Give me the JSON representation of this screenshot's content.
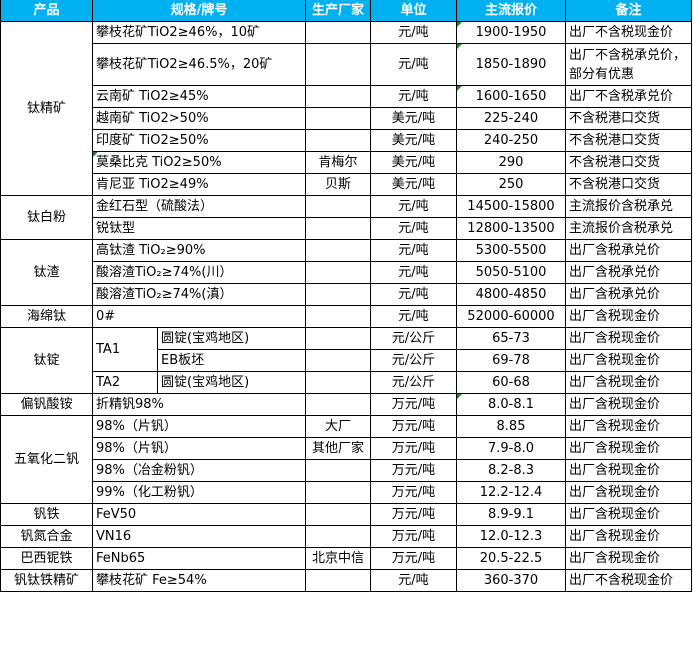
{
  "header": [
    "产品",
    "规格/牌号",
    "生产厂家",
    "单位",
    "主流报价",
    "备注"
  ],
  "accent_color": "#00B0F0",
  "groups": [
    {
      "product": "钛精矿",
      "items": [
        {
          "spec": "攀枝花矿TiO2≥46%，10矿",
          "maker": "",
          "unit": "元/吨",
          "price": "1900-1950",
          "note": "出厂不含税现金价",
          "mark": "price"
        },
        {
          "spec": "攀枝花矿TiO2≥46.5%，20矿",
          "maker": "",
          "unit": "元/吨",
          "price": "1850-1890",
          "note": "出厂不含税承兑价，部分有优惠",
          "mark": "price",
          "tall": true
        },
        {
          "spec": "云南矿 TiO2≥45%",
          "maker": "",
          "unit": "元/吨",
          "price": "1600-1650",
          "note": "出厂不含税承兑价",
          "mark": "price"
        },
        {
          "spec": "越南矿 TiO2>50%",
          "maker": "",
          "unit": "美元/吨",
          "price": "225-240",
          "note": "不含税港口交货"
        },
        {
          "spec": "印度矿 TiO2≥50%",
          "maker": "",
          "unit": "美元/吨",
          "price": "240-250",
          "note": "不含税港口交货"
        },
        {
          "spec": "莫桑比克 TiO2≥50%",
          "maker": "肯梅尔",
          "unit": "美元/吨",
          "price": "290",
          "note": "不含税港口交货",
          "mark": "spec"
        },
        {
          "spec": "肯尼亚 TiO2≥49%",
          "maker": "贝斯",
          "unit": "美元/吨",
          "price": "250",
          "note": "不含税港口交货"
        }
      ]
    },
    {
      "product": "钛白粉",
      "items": [
        {
          "spec": "金红石型（硫酸法）",
          "maker": "",
          "unit": "元/吨",
          "price": "14500-15800",
          "note": "主流报价含税承兑"
        },
        {
          "spec": "锐钛型",
          "maker": "",
          "unit": "元/吨",
          "price": "12800-13500",
          "note": "主流报价含税承兑"
        }
      ]
    },
    {
      "product": "钛渣",
      "items": [
        {
          "spec": "高钛渣 TiO₂≥90%",
          "maker": "",
          "unit": "元/吨",
          "price": "5300-5500",
          "note": "出厂含税承兑价"
        },
        {
          "spec": "酸溶渣TiO₂≥74%(川）",
          "maker": "",
          "unit": "元/吨",
          "price": "5050-5100",
          "note": "出厂含税承兑价"
        },
        {
          "spec": "酸溶渣TiO₂≥74%(滇）",
          "maker": "",
          "unit": "元/吨",
          "price": "4800-4850",
          "note": "出厂含税承兑价"
        }
      ]
    },
    {
      "product": "海绵钛",
      "items": [
        {
          "spec": "0#",
          "maker": "",
          "unit": "元/吨",
          "price": "52000-60000",
          "note": "出厂含税现金价"
        }
      ]
    },
    {
      "product": "钛锭",
      "split": true,
      "items": [
        {
          "grade": "TA1",
          "grade_span": 2,
          "spec": "圆锭(宝鸡地区)",
          "maker": "",
          "unit": "元/公斤",
          "price": "65-73",
          "note": "出厂含税现金价"
        },
        {
          "spec": "EB板坯",
          "maker": "",
          "unit": "元/公斤",
          "price": "69-78",
          "note": "出厂含税现金价"
        },
        {
          "grade": "TA2",
          "grade_span": 1,
          "spec": "圆锭(宝鸡地区)",
          "maker": "",
          "unit": "元/公斤",
          "price": "60-68",
          "note": "出厂含税现金价"
        }
      ]
    },
    {
      "product": "偏钒酸铵",
      "items": [
        {
          "spec": "折精钒98%",
          "maker": "",
          "unit": "万元/吨",
          "price": "8.0-8.1",
          "note": "出厂含税现金价",
          "mark": "price"
        }
      ]
    },
    {
      "product": "五氧化二钒",
      "items": [
        {
          "spec": "98%（片钒）",
          "maker": "大厂",
          "unit": "万元/吨",
          "price": "8.85",
          "note": "出厂含税现金价"
        },
        {
          "spec": "98%（片钒）",
          "maker": "其他厂家",
          "unit": "万元/吨",
          "price": "7.9-8.0",
          "note": "出厂含税现金价"
        },
        {
          "spec": "98%（冶金粉钒）",
          "maker": "",
          "unit": "万元/吨",
          "price": "8.2-8.3",
          "note": "出厂含税现金价"
        },
        {
          "spec": "99%（化工粉钒）",
          "maker": "",
          "unit": "万元/吨",
          "price": "12.2-12.4",
          "note": "出厂含税现金价"
        }
      ]
    },
    {
      "product": "钒铁",
      "items": [
        {
          "spec": "FeV50",
          "maker": "",
          "unit": "万元/吨",
          "price": "8.9-9.1",
          "note": "出厂含税现金价"
        }
      ]
    },
    {
      "product": "钒氮合金",
      "items": [
        {
          "spec": "VN16",
          "maker": "",
          "unit": "万元/吨",
          "price": "12.0-12.3",
          "note": "出厂含税现金价"
        }
      ]
    },
    {
      "product": "巴西铌铁",
      "items": [
        {
          "spec": "FeNb65",
          "maker": "北京中信",
          "unit": "万元/吨",
          "price": "20.5-22.5",
          "note": "出厂含税现金价"
        }
      ]
    },
    {
      "product": "钒钛铁精矿",
      "items": [
        {
          "spec": "攀枝花矿 Fe≥54%",
          "maker": "",
          "unit": "元/吨",
          "price": "360-370",
          "note": "出厂不含税现金价"
        }
      ]
    }
  ]
}
